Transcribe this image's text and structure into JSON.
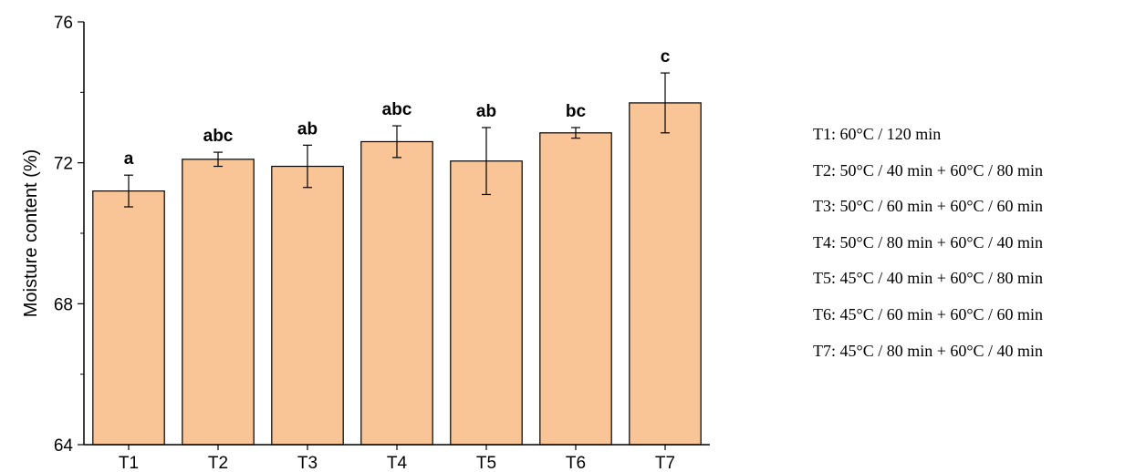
{
  "chart_data": {
    "type": "bar",
    "categories": [
      "T1",
      "T2",
      "T3",
      "T4",
      "T5",
      "T6",
      "T7"
    ],
    "values": [
      71.2,
      72.1,
      71.9,
      72.6,
      72.05,
      72.85,
      73.7
    ],
    "errors": [
      0.45,
      0.2,
      0.6,
      0.45,
      0.95,
      0.15,
      0.85
    ],
    "significance": [
      "a",
      "abc",
      "ab",
      "abc",
      "ab",
      "bc",
      "c"
    ],
    "ylabel": "Moisture content (%)",
    "xlabel": "",
    "ylim": [
      64,
      76
    ],
    "yticks": [
      "64",
      "68",
      "72",
      "76"
    ],
    "bar_color": "#f9c597",
    "legend": [
      "T1: 60°C / 120 min",
      "T2: 50°C / 40 min + 60°C / 80 min",
      "T3: 50°C / 60 min + 60°C / 60 min",
      "T4: 50°C / 80 min + 60°C / 40 min",
      "T5: 45°C / 40 min + 60°C / 80 min",
      "T6: 45°C / 60 min + 60°C / 60 min",
      "T7: 45°C / 80 min + 60°C / 40 min"
    ]
  }
}
